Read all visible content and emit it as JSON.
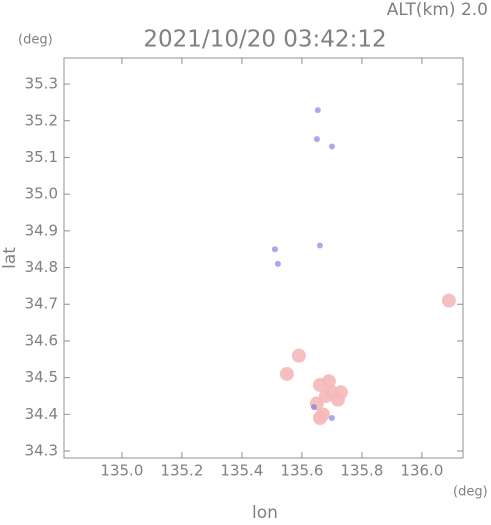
{
  "chart_data": {
    "type": "scatter",
    "title": "2021/10/20 03:42:12",
    "subtitle": "ALT(km) 2.0",
    "x_label": "lon",
    "y_label": "lat",
    "x_unit": "(deg)",
    "y_unit": "(deg)",
    "xlim": [
      134.807,
      136.137
    ],
    "ylim": [
      34.281,
      35.371
    ],
    "xticks": [
      {
        "value": 135,
        "label": "135.0"
      },
      135.2,
      135.4,
      135.6,
      135.8,
      {
        "value": 136,
        "label": "136.0"
      }
    ],
    "yticks": [
      34.3,
      34.4,
      34.5,
      34.6,
      34.7,
      34.8,
      34.9,
      {
        "value": 35,
        "label": "35.0"
      },
      35.1,
      35.2,
      35.3
    ],
    "series": [
      {
        "color": "#f5b8b8",
        "x": [
          136.09,
          135.59,
          135.55,
          135.66,
          135.68,
          135.65,
          135.67,
          135.7,
          135.72,
          135.73,
          135.69,
          135.66
        ],
        "y": [
          34.71,
          34.56,
          34.51,
          34.48,
          34.45,
          34.43,
          34.4,
          34.46,
          34.44,
          34.46,
          34.49,
          34.39
        ]
      },
      {
        "color": "#7070e0",
        "x": [
          135.653,
          135.65,
          135.7,
          135.66,
          135.51,
          135.52,
          135.64,
          135.7
        ],
        "y": [
          35.229,
          35.15,
          35.13,
          34.86,
          34.85,
          34.81,
          34.42,
          34.39
        ]
      }
    ]
  }
}
